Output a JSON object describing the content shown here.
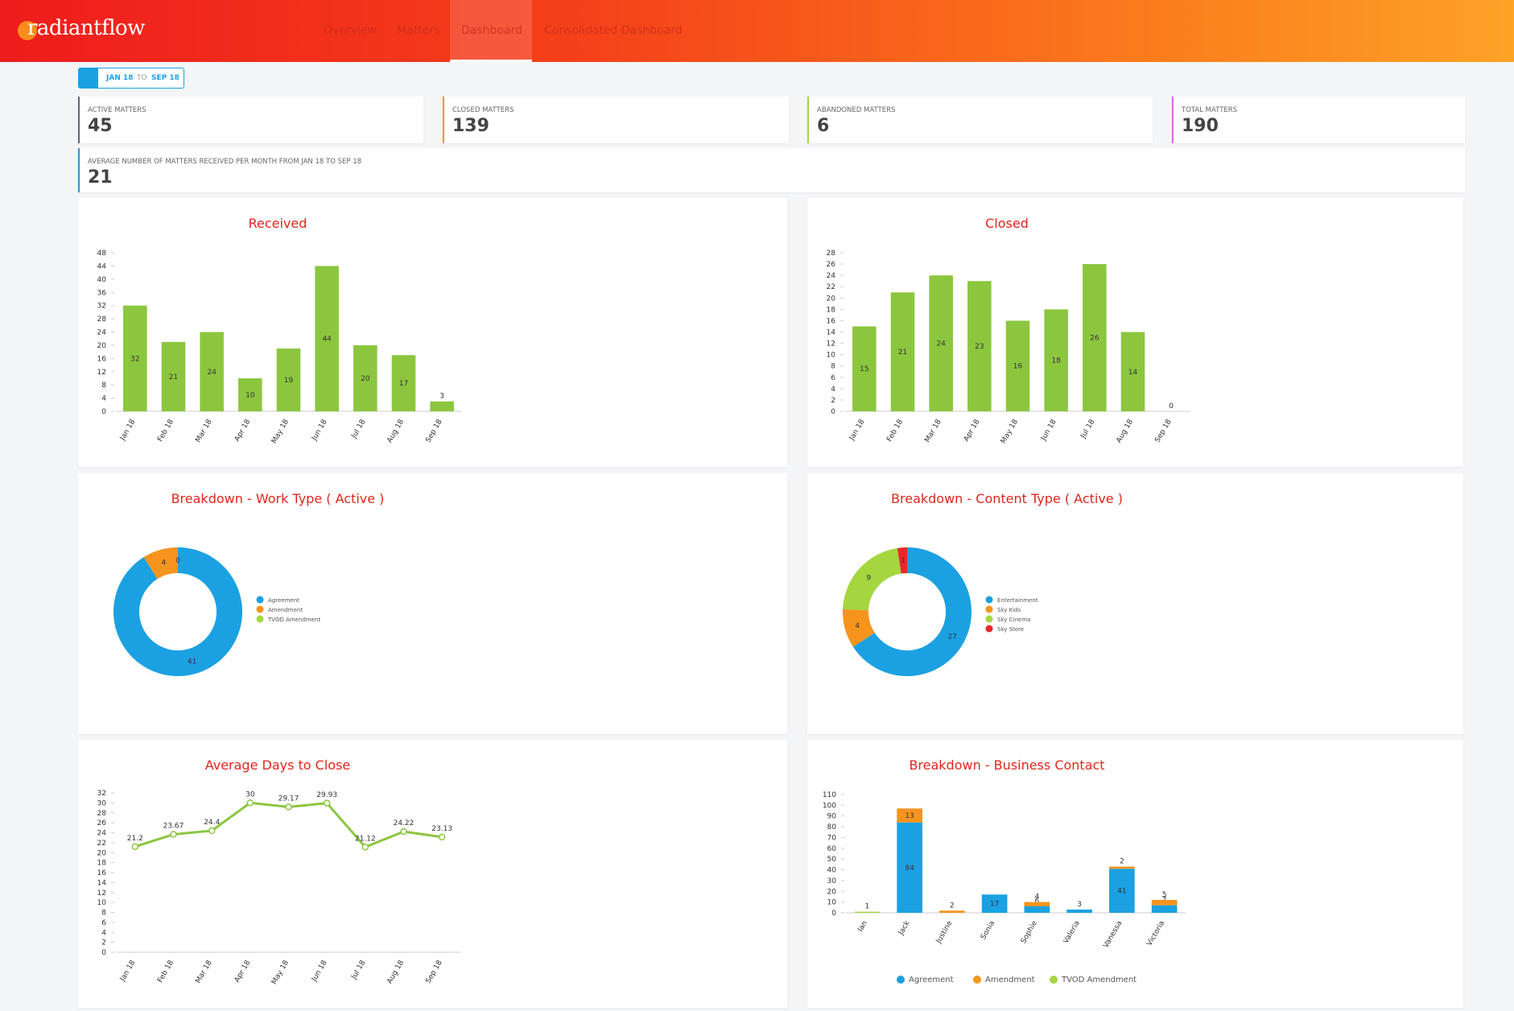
{
  "header": {
    "logo": "radiantflow",
    "nav": [
      "Overview",
      "Matters",
      "Dashboard",
      "Consolidated Dashboard"
    ]
  },
  "date_range": {
    "from": "JAN 18",
    "to_label": "TO",
    "to": "SEP 18"
  },
  "stats": [
    {
      "label": "ACTIVE MATTERS",
      "value": 45
    },
    {
      "label": "CLOSED MATTERS",
      "value": 139
    },
    {
      "label": "ABANDONED MATTERS",
      "value": 6
    },
    {
      "label": "TOTAL MATTERS",
      "value": 190
    }
  ],
  "average": {
    "label": "AVERAGE NUMBER OF MATTERS RECEIVED PER MONTH FROM JAN 18 TO SEP 18",
    "value": 21
  },
  "chart_data": [
    {
      "type": "bar",
      "title": "Received",
      "categories": [
        "Jan 18",
        "Feb 18",
        "Mar 18",
        "Apr 18",
        "May 18",
        "Jun 18",
        "Jul 18",
        "Aug 18",
        "Sep 18"
      ],
      "values": [
        32,
        21,
        24,
        10,
        19,
        44,
        20,
        17,
        3
      ],
      "color": "#8cc63f",
      "ylim": [
        0,
        48
      ],
      "yticks": [
        0,
        4,
        8,
        12,
        16,
        20,
        24,
        28,
        32,
        36,
        40,
        44,
        48
      ]
    },
    {
      "type": "bar",
      "title": "Closed",
      "categories": [
        "Jan 18",
        "Feb 18",
        "Mar 18",
        "Apr 18",
        "May 18",
        "Jun 18",
        "Jul 18",
        "Aug 18",
        "Sep 18"
      ],
      "values": [
        15,
        21,
        24,
        23,
        16,
        18,
        26,
        14,
        0
      ],
      "color": "#8cc63f",
      "ylim": [
        0,
        28
      ],
      "yticks": [
        0,
        2,
        4,
        6,
        8,
        10,
        12,
        14,
        16,
        18,
        20,
        22,
        24,
        26,
        28
      ]
    },
    {
      "type": "pie",
      "title": "Breakdown - Work Type ( Active )",
      "categories": [
        "Agreement",
        "Amendment",
        "TVOD Amendment"
      ],
      "values": [
        41,
        4,
        0
      ],
      "colors": [
        "#1ba1e2",
        "#f7941d",
        "#a5d63f"
      ]
    },
    {
      "type": "pie",
      "title": "Breakdown - Content Type ( Active )",
      "categories": [
        "Entertainment",
        "Sky Kids",
        "Sky Cinema",
        "Sky Store"
      ],
      "values": [
        27,
        4,
        9,
        1
      ],
      "colors": [
        "#1ba1e2",
        "#f7941d",
        "#a5d63f",
        "#e8292a"
      ]
    },
    {
      "type": "line",
      "title": "Average Days to Close",
      "categories": [
        "Jan 18",
        "Feb 18",
        "Mar 18",
        "Apr 18",
        "May 18",
        "Jun 18",
        "Jul 18",
        "Aug 18",
        "Sep 18"
      ],
      "values": [
        21.2,
        23.67,
        24.4,
        30,
        29.17,
        29.93,
        21.12,
        24.22,
        23.13
      ],
      "color": "#8cc63f",
      "ylim": [
        0,
        32
      ],
      "yticks": [
        0,
        2,
        4,
        6,
        8,
        10,
        12,
        14,
        16,
        18,
        20,
        22,
        24,
        26,
        28,
        30,
        32
      ]
    },
    {
      "type": "stacked_bar",
      "title": "Breakdown - Business Contact",
      "categories": [
        "Ian",
        "Jack",
        "Justine",
        "Sonia",
        "Sophie",
        "Valeria",
        "Vanessa",
        "Victoria"
      ],
      "series": [
        {
          "name": "Agreement",
          "color": "#1ba1e2",
          "values": [
            0,
            84,
            0,
            17,
            6,
            3,
            41,
            7
          ]
        },
        {
          "name": "Amendment",
          "color": "#f7941d",
          "values": [
            0,
            13,
            2,
            0,
            4,
            0,
            2,
            5
          ]
        },
        {
          "name": "TVOD Amendment",
          "color": "#a5d63f",
          "values": [
            1,
            0,
            0,
            0,
            0,
            0,
            0,
            0
          ]
        }
      ],
      "ylim": [
        0,
        110
      ],
      "yticks": [
        0,
        10,
        20,
        30,
        40,
        50,
        60,
        70,
        80,
        90,
        100,
        110
      ]
    }
  ]
}
